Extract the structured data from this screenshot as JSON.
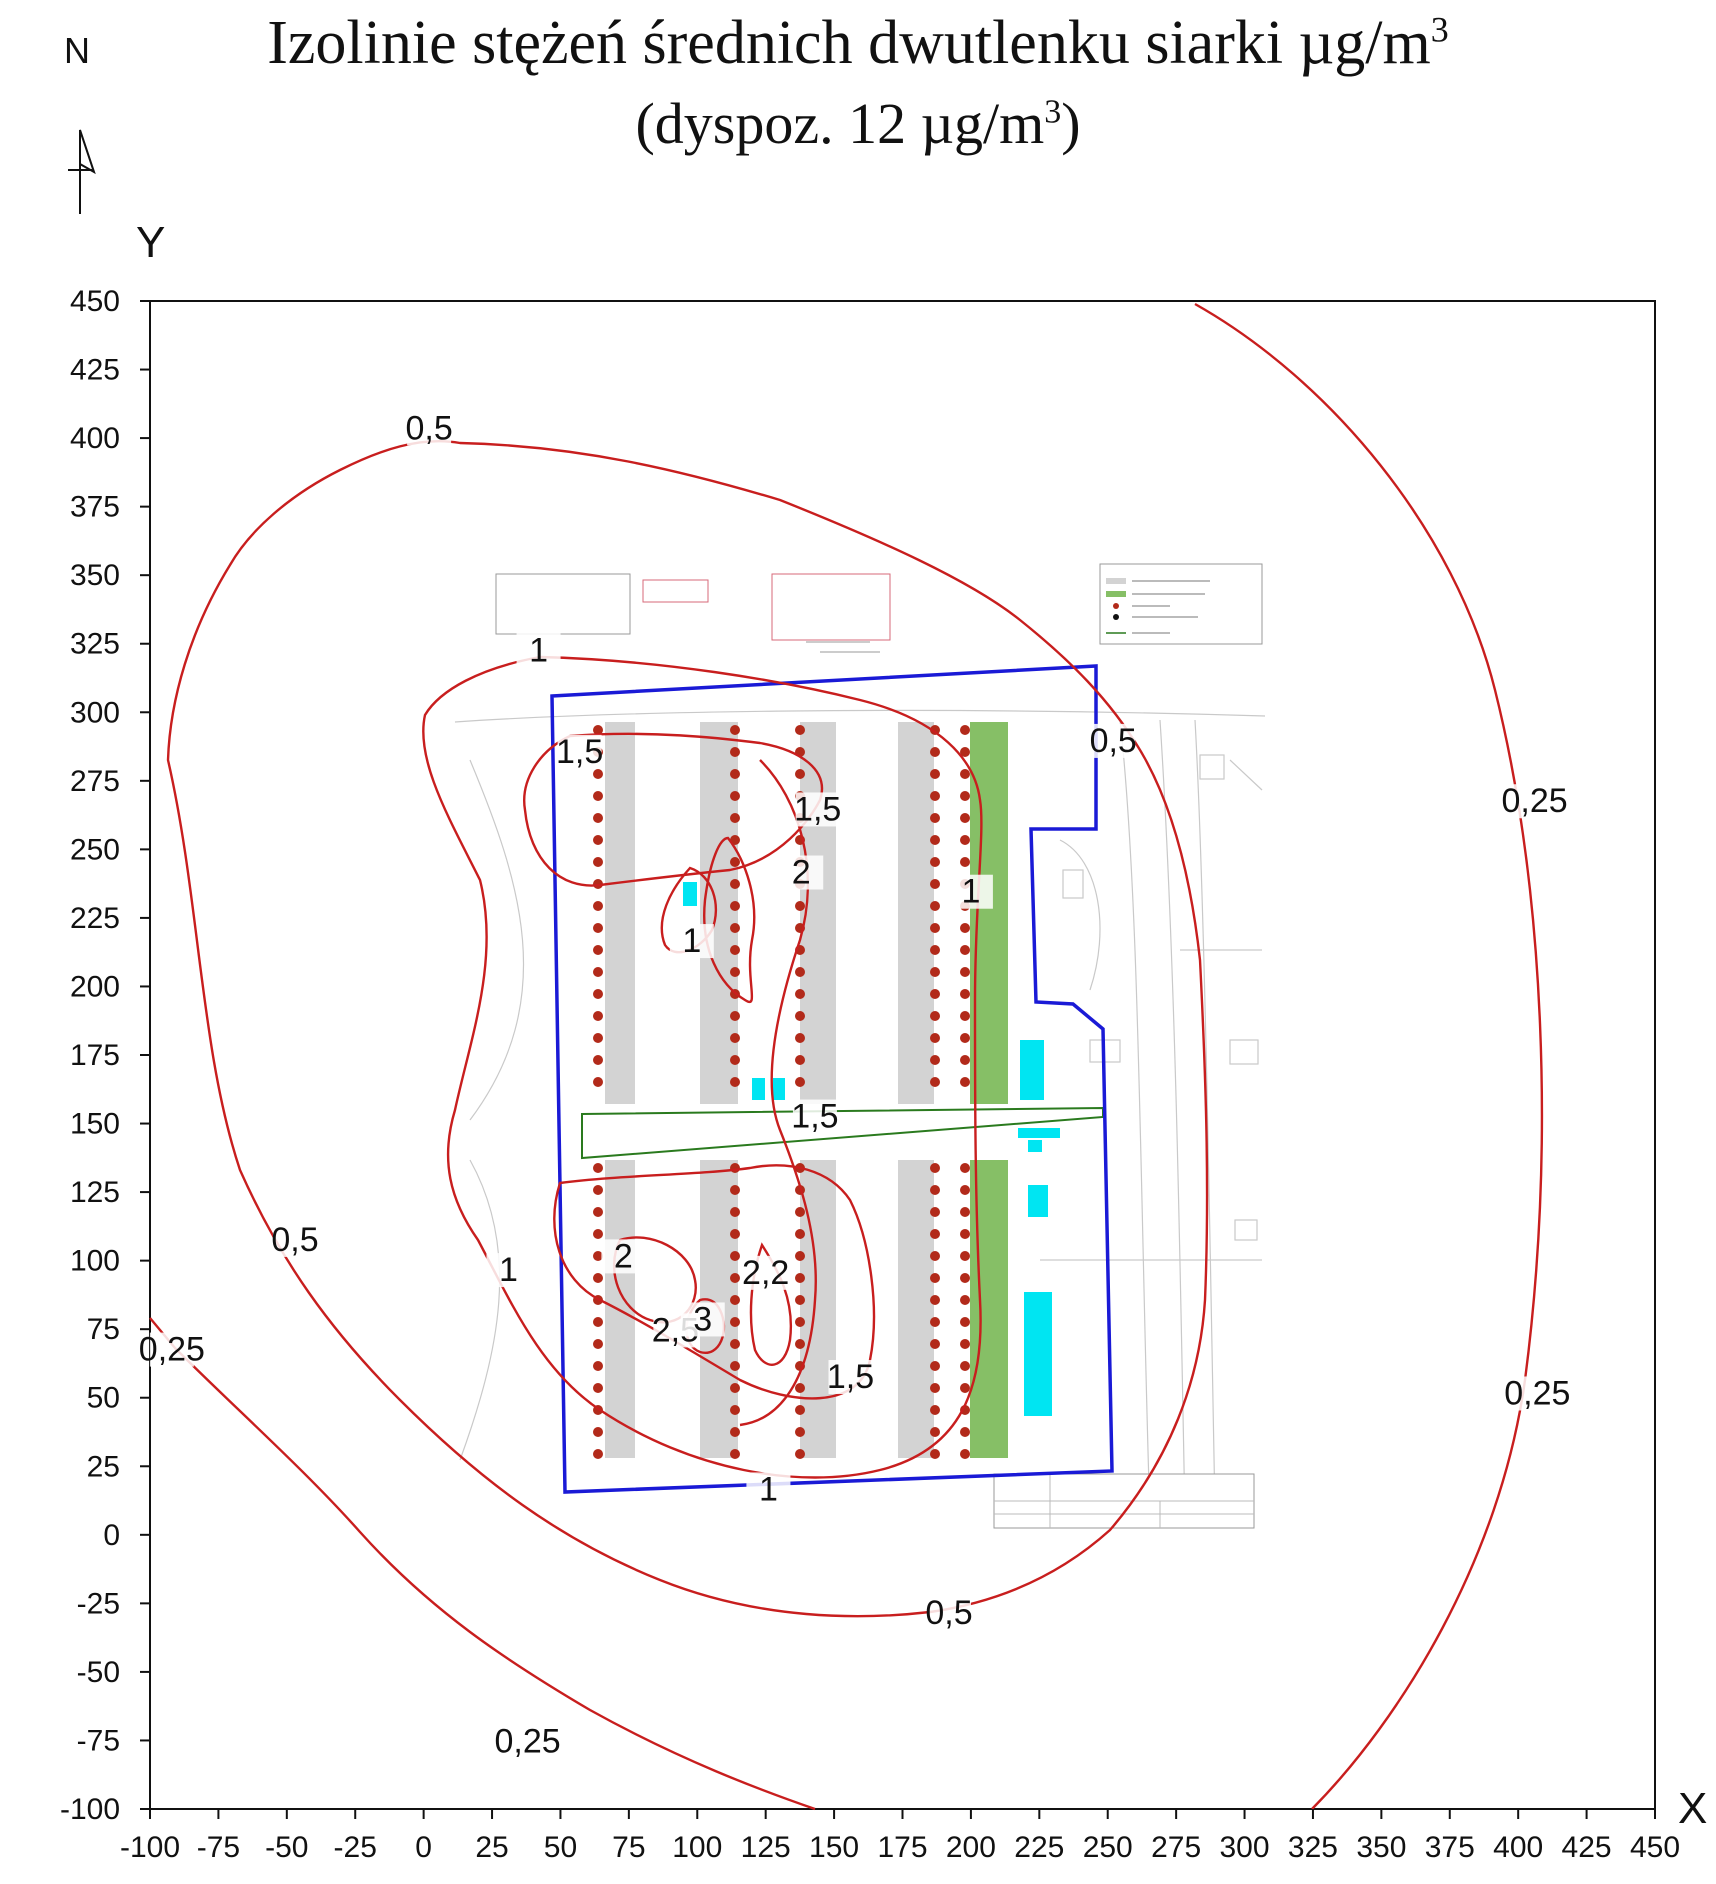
{
  "title": {
    "line1": "Izolinie stężeń średnich dwutlenku siarki µg/m",
    "line1_sup": "3",
    "line2_pre": "(dyspoz. 12 µg/m",
    "line2_sup": "3",
    "line2_post": ")"
  },
  "north_label": "N",
  "axes": {
    "x_name": "X",
    "y_name": "Y",
    "x_range": [
      -100,
      450
    ],
    "y_range": [
      -100,
      450
    ],
    "x_ticks": [
      -100,
      -75,
      -50,
      -25,
      0,
      25,
      50,
      75,
      100,
      125,
      150,
      175,
      200,
      225,
      250,
      275,
      300,
      325,
      350,
      375,
      400,
      425,
      450
    ],
    "y_ticks": [
      450,
      425,
      400,
      375,
      350,
      325,
      300,
      275,
      250,
      225,
      200,
      175,
      150,
      125,
      100,
      75,
      50,
      25,
      0,
      -25,
      -50,
      -75,
      -100
    ]
  },
  "contour_labels": [
    {
      "text": "0,5",
      "x": 2,
      "y": 401
    },
    {
      "text": "1",
      "x": 42,
      "y": 320
    },
    {
      "text": "1,5",
      "x": 57,
      "y": 283
    },
    {
      "text": "1,5",
      "x": 144,
      "y": 262
    },
    {
      "text": "2",
      "x": 138,
      "y": 239
    },
    {
      "text": "1",
      "x": 98,
      "y": 214
    },
    {
      "text": "1",
      "x": 200,
      "y": 232
    },
    {
      "text": "0,5",
      "x": 252,
      "y": 287
    },
    {
      "text": "0,25",
      "x": 406,
      "y": 265
    },
    {
      "text": "1,5",
      "x": 143,
      "y": 150
    },
    {
      "text": "2",
      "x": 73,
      "y": 99
    },
    {
      "text": "2,2",
      "x": 125,
      "y": 93
    },
    {
      "text": "2,5",
      "x": 92,
      "y": 72
    },
    {
      "text": "3",
      "x": 102,
      "y": 76
    },
    {
      "text": "1,5",
      "x": 156,
      "y": 55
    },
    {
      "text": "1",
      "x": 31,
      "y": 94
    },
    {
      "text": "0,5",
      "x": -47,
      "y": 105
    },
    {
      "text": "0,25",
      "x": -92,
      "y": 65
    },
    {
      "text": "1",
      "x": 126,
      "y": 14
    },
    {
      "text": "0,5",
      "x": 192,
      "y": -31
    },
    {
      "text": "0,25",
      "x": 407,
      "y": 49
    },
    {
      "text": "0,25",
      "x": 38,
      "y": -78
    }
  ],
  "colors": {
    "isolines": "#c81e1e",
    "site_boundary": "#1a1ad6",
    "existing_barns": "#d3d3d3",
    "new_barns": "#86bf66",
    "emitters": "#00e5f2",
    "fans": "#b22a1a",
    "road_strip": "#2a7a1e"
  }
}
